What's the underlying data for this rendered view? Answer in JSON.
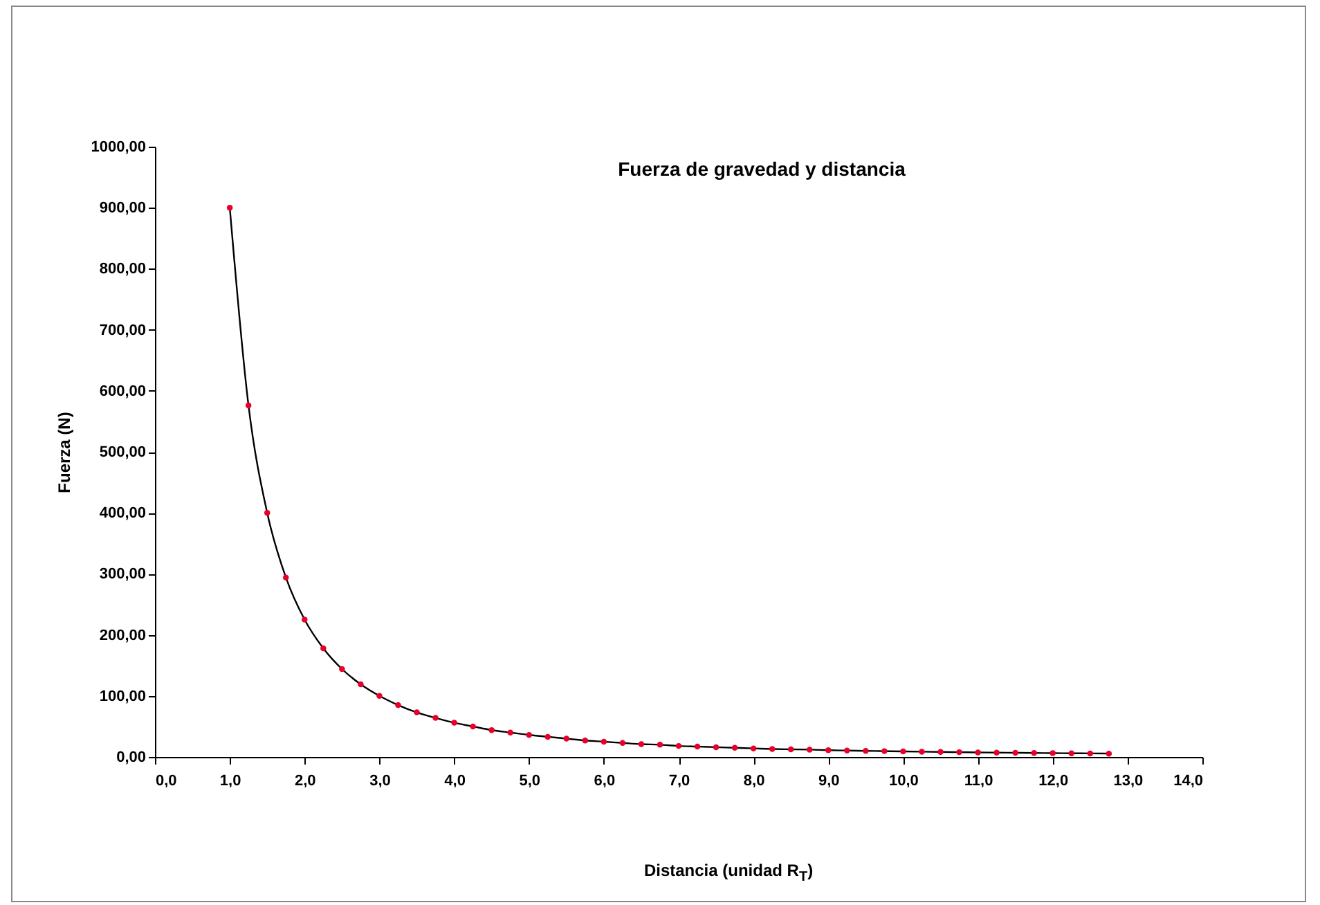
{
  "chart_data": {
    "type": "line",
    "title": "Fuerza de gravedad y distancia",
    "xlabel": "Distancia (unidad R$_{T}$)",
    "ylabel": "Fuerza (N)",
    "x": [
      1.0,
      1.25,
      1.5,
      1.75,
      2.0,
      2.25,
      2.5,
      2.75,
      3.0,
      3.25,
      3.5,
      3.75,
      4.0,
      4.25,
      4.5,
      4.75,
      5.0,
      5.25,
      5.5,
      5.75,
      6.0,
      6.25,
      6.5,
      6.75,
      7.0,
      7.25,
      7.5,
      7.75,
      8.0,
      8.25,
      8.5,
      8.75,
      9.0,
      9.25,
      9.5,
      9.75,
      10.0,
      10.25,
      10.5,
      10.75,
      11.0,
      11.25,
      11.5,
      11.75,
      12.0,
      12.25,
      12.5,
      12.75
    ],
    "series": [
      {
        "color": "#e8002a",
        "values": [
          900,
          576,
          400,
          294,
          225,
          178,
          144,
          119,
          100,
          85,
          73,
          64,
          56,
          50,
          44,
          40,
          36,
          33,
          30,
          27,
          25,
          23,
          21,
          20,
          18,
          17,
          16,
          15,
          14,
          13,
          12.5,
          12,
          11,
          10.5,
          10,
          9.5,
          9,
          8.6,
          8.2,
          7.8,
          7.4,
          7.1,
          6.8,
          6.5,
          6.3,
          6,
          5.8,
          5.5
        ]
      }
    ],
    "xlim": [
      0,
      14
    ],
    "ylim": [
      0,
      1000
    ],
    "xticks": [
      {
        "value": 0,
        "label": "0,0"
      },
      {
        "value": 1,
        "label": "1,0"
      },
      {
        "value": 2,
        "label": "2,0"
      },
      {
        "value": 3,
        "label": "3,0"
      },
      {
        "value": 4,
        "label": "4,0"
      },
      {
        "value": 5,
        "label": "5,0"
      },
      {
        "value": 6,
        "label": "6,0"
      },
      {
        "value": 7,
        "label": "7,0"
      },
      {
        "value": 8,
        "label": "8,0"
      },
      {
        "value": 9,
        "label": "9,0"
      },
      {
        "value": 10,
        "label": "10,0"
      },
      {
        "value": 11,
        "label": "11,0"
      },
      {
        "value": 12,
        "label": "12,0"
      },
      {
        "value": 13,
        "label": "13,0"
      },
      {
        "value": 14,
        "label": "14,0"
      }
    ],
    "yticks": [
      {
        "value": 0,
        "label": "0,00"
      },
      {
        "value": 100,
        "label": "100,00"
      },
      {
        "value": 200,
        "label": "200,00"
      },
      {
        "value": 300,
        "label": "300,00"
      },
      {
        "value": 400,
        "label": "400,00"
      },
      {
        "value": 500,
        "label": "500,00"
      },
      {
        "value": 600,
        "label": "600,00"
      },
      {
        "value": 700,
        "label": "700,00"
      },
      {
        "value": 800,
        "label": "800,00"
      },
      {
        "value": 900,
        "label": "900,00"
      },
      {
        "value": 1000,
        "label": "1000,00"
      }
    ],
    "grid": false,
    "marker": "circle",
    "line_style": "solid"
  }
}
